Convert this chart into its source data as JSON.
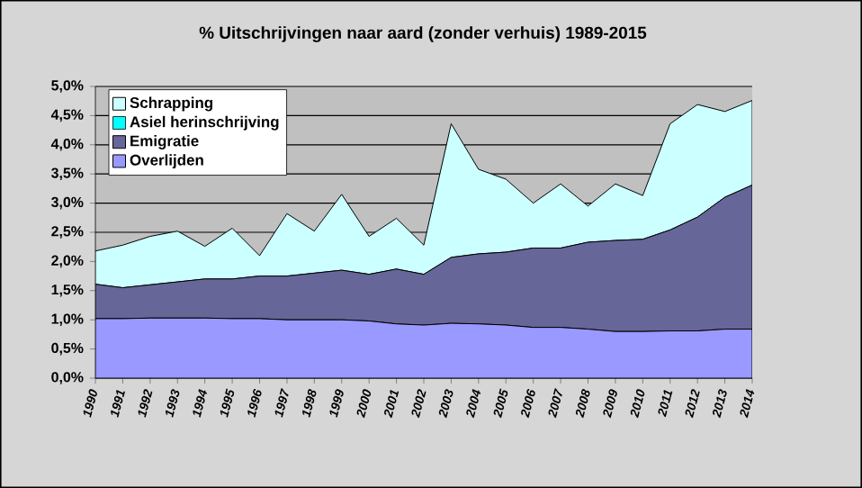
{
  "chart_data": {
    "type": "area",
    "stacked": true,
    "title": "% Uitschrijvingen naar aard (zonder verhuis) 1989-2015",
    "categories": [
      "1990",
      "1991",
      "1992",
      "1993",
      "1994",
      "1995",
      "1996",
      "1997",
      "1998",
      "1999",
      "2000",
      "2001",
      "2002",
      "2003",
      "2004",
      "2005",
      "2006",
      "2007",
      "2008",
      "2009",
      "2010",
      "2011",
      "2012",
      "2013",
      "2014"
    ],
    "series": [
      {
        "name": "Overlijden",
        "color": "#9999ff",
        "values": [
          1.02,
          1.02,
          1.03,
          1.03,
          1.03,
          1.02,
          1.02,
          1.0,
          1.0,
          1.0,
          0.98,
          0.93,
          0.91,
          0.94,
          0.93,
          0.91,
          0.87,
          0.87,
          0.84,
          0.8,
          0.8,
          0.81,
          0.81,
          0.84,
          0.84
        ]
      },
      {
        "name": "Emigratie",
        "color": "#666699",
        "values": [
          0.59,
          0.53,
          0.57,
          0.62,
          0.67,
          0.68,
          0.73,
          0.75,
          0.8,
          0.85,
          0.8,
          0.94,
          0.87,
          1.13,
          1.2,
          1.25,
          1.36,
          1.36,
          1.49,
          1.56,
          1.58,
          1.73,
          1.95,
          2.26,
          2.47
        ]
      },
      {
        "name": "Asiel herinschrijving",
        "color": "#00ffff",
        "values": [
          null,
          null,
          null,
          null,
          null,
          null,
          null,
          null,
          null,
          null,
          null,
          null,
          null,
          null,
          null,
          null,
          null,
          null,
          null,
          null,
          null,
          null,
          null,
          null,
          null
        ]
      },
      {
        "name": "Schrapping",
        "color": "#ccffff",
        "values": [
          0.57,
          0.73,
          0.83,
          0.87,
          0.56,
          0.87,
          0.35,
          1.07,
          0.72,
          1.3,
          0.65,
          0.87,
          0.5,
          2.29,
          1.45,
          1.25,
          0.77,
          1.1,
          0.62,
          0.97,
          0.75,
          1.82,
          1.93,
          1.47,
          1.45
        ]
      }
    ],
    "ylim": [
      0,
      5
    ],
    "yticks": [
      {
        "value": 0,
        "label": "0,0%"
      },
      {
        "value": 0.5,
        "label": "0,5%"
      },
      {
        "value": 1,
        "label": "1,0%"
      },
      {
        "value": 1.5,
        "label": "1,5%"
      },
      {
        "value": 2,
        "label": "2,0%"
      },
      {
        "value": 2.5,
        "label": "2,5%"
      },
      {
        "value": 3,
        "label": "3,0%"
      },
      {
        "value": 3.5,
        "label": "3,5%"
      },
      {
        "value": 4,
        "label": "4,0%"
      },
      {
        "value": 4.5,
        "label": "4,5%"
      },
      {
        "value": 5,
        "label": "5,0%"
      }
    ],
    "grid": "y",
    "legend": "top left"
  }
}
